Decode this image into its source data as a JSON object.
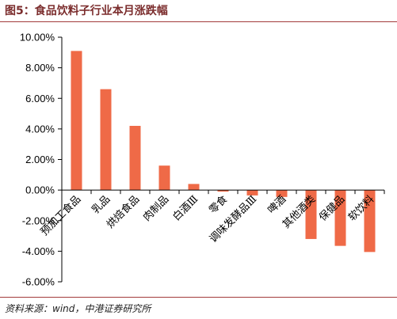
{
  "title": "图5：食品饮料子行业本月涨跌幅",
  "source": "资料来源：wind，中港证券研究所",
  "colors": {
    "bar": "#ef6a47",
    "title": "#7b2d2d",
    "rule": "#a33b3b"
  },
  "chart_data": {
    "type": "bar",
    "categories": [
      "预加工食品",
      "乳品",
      "烘焙食品",
      "肉制品",
      "白酒Ⅲ",
      "零食",
      "调味发酵品Ⅲ",
      "啤酒",
      "其他酒类",
      "保健品",
      "软饮料"
    ],
    "values": [
      0.091,
      0.066,
      0.042,
      0.016,
      0.004,
      -0.001,
      -0.0035,
      -0.0045,
      -0.032,
      -0.0365,
      -0.0405
    ],
    "ylim": [
      -0.06,
      0.1
    ],
    "yticks": [
      0.1,
      0.08,
      0.06,
      0.04,
      0.02,
      0.0,
      -0.02,
      -0.04,
      -0.06
    ],
    "ytick_labels": [
      "10.00%",
      "8.00%",
      "6.00%",
      "4.00%",
      "2.00%",
      "0.00%",
      "-2.00%",
      "-4.00%",
      "-6.00%"
    ],
    "grid": false,
    "legend": "none"
  }
}
